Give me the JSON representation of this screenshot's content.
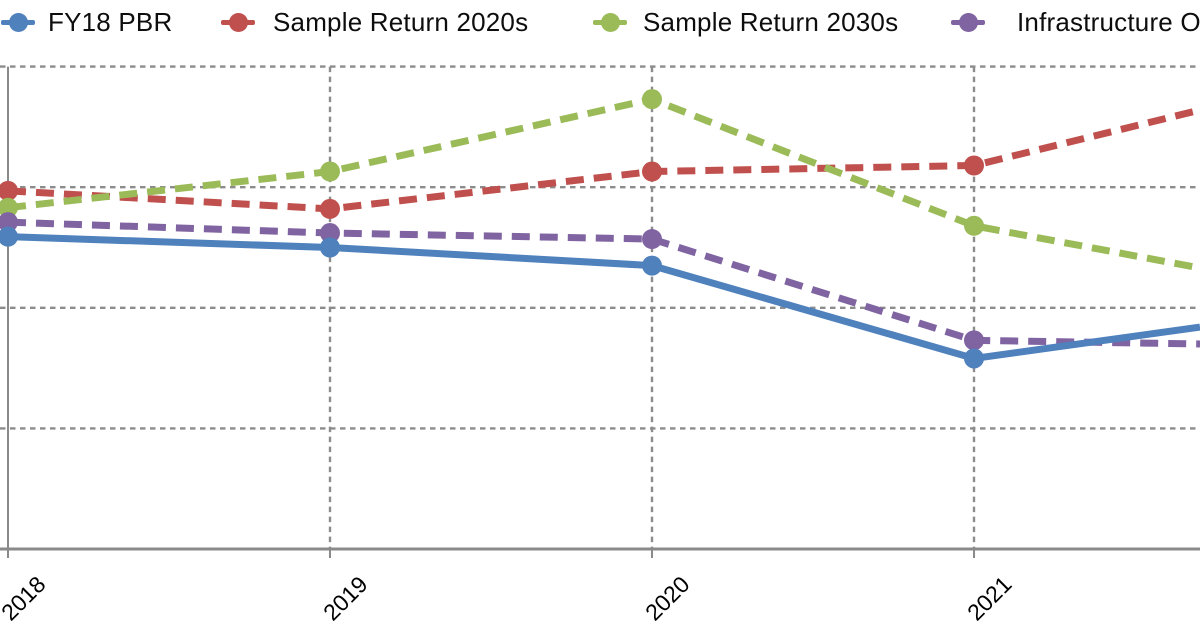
{
  "page": {
    "background": "#ffffff"
  },
  "legend": {
    "position": "top",
    "items": [
      {
        "label": "FY18 PBR",
        "color": "#4F81BD",
        "marker": "circle-on-line"
      },
      {
        "label": "Sample Return 2020s",
        "color": "#C0504D",
        "marker": "circle-on-line"
      },
      {
        "label": "Sample Return 2030s",
        "color": "#9BBB59",
        "marker": "circle-on-line"
      },
      {
        "label": "Infrastructure Or",
        "color": "#8064A2",
        "marker": "circle-on-line",
        "truncated_by_crop": true
      }
    ]
  },
  "chart_data": {
    "type": "line",
    "categories": [
      2018,
      2019,
      2020,
      2021
    ],
    "x_tick_labels": [
      "2018",
      "2019",
      "2020",
      "2021"
    ],
    "series": [
      {
        "name": "FY18 PBR",
        "color": "#4F81BD",
        "line_style": "solid",
        "marker": "circle",
        "values": [
          259,
          250,
          235,
          158
        ],
        "value_at_right_crop": 184
      },
      {
        "name": "Sample Return 2020s",
        "color": "#C0504D",
        "line_style": "dashed",
        "marker": "circle",
        "values": [
          297,
          282,
          313,
          318
        ],
        "value_at_right_crop": 364
      },
      {
        "name": "Sample Return 2030s",
        "color": "#9BBB59",
        "line_style": "dashed",
        "marker": "circle",
        "values": [
          283,
          313,
          373,
          268
        ],
        "value_at_right_crop": 233
      },
      {
        "name": "Infrastructure Or",
        "color": "#8064A2",
        "line_style": "dashed",
        "marker": "circle",
        "values": [
          271,
          262,
          257,
          173
        ],
        "value_at_right_crop": 170
      }
    ],
    "ylim": [
      0,
      405
    ],
    "y_gridline_values": [
      100,
      200,
      300,
      400
    ],
    "y_axis_labels_visible": false,
    "grid": "dashed gray, horizontal and vertical",
    "legend_position": "top",
    "note": "Figure is cropped: y-axis value labels, left margin and the area right of ~year 2021.7 are outside the frame. Y values are in gridline units (one gridline spacing = 100, x-axis baseline = 0). value_at_right_crop = height where each line exits the right edge."
  },
  "colors": {
    "grid": "#8c8c8c",
    "axis": "#8a8a8a",
    "tick_label": "#000000",
    "legend_text": "#0d0d0d"
  }
}
